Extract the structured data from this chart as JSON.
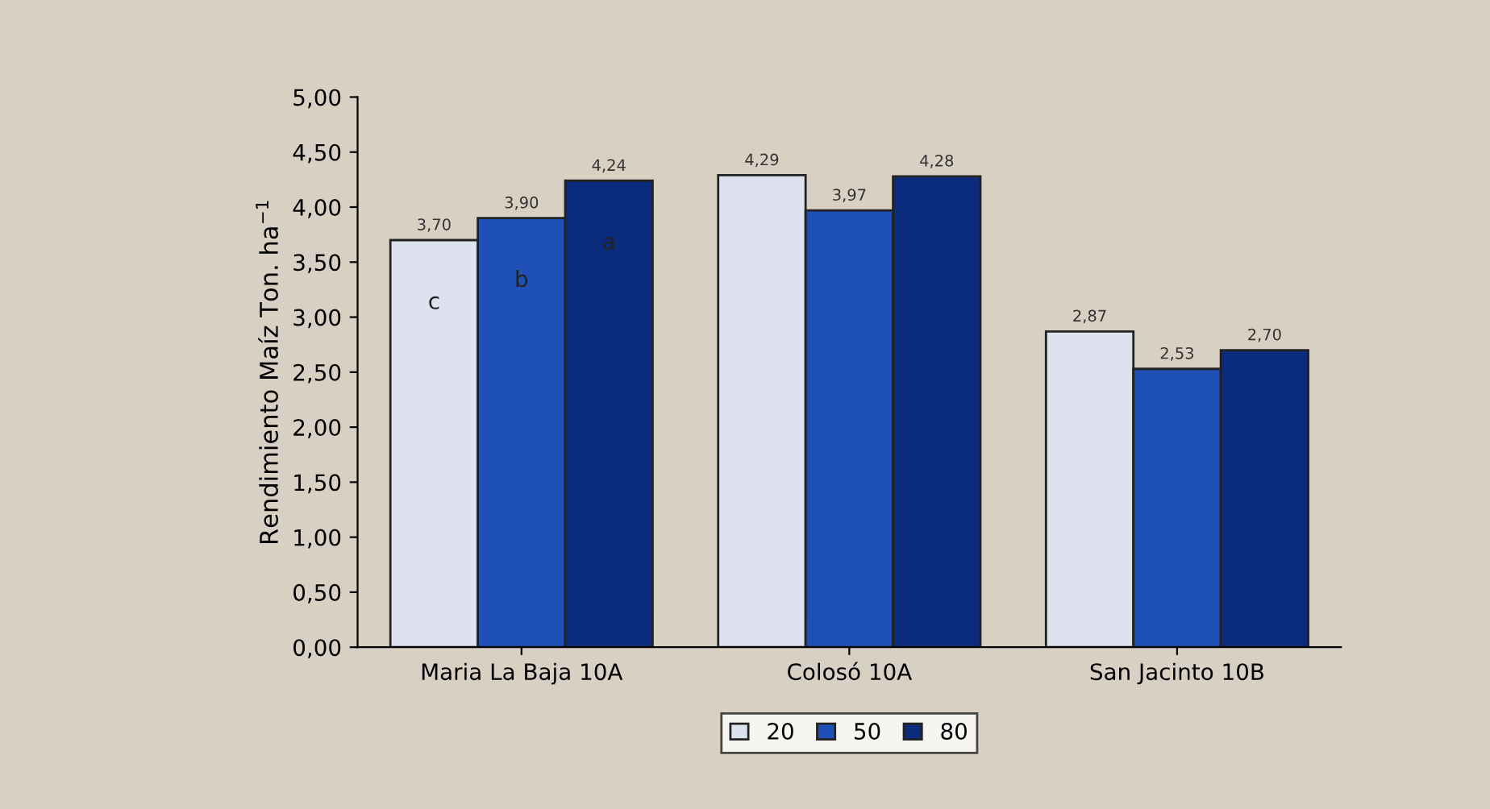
{
  "chart_data": {
    "type": "bar",
    "ylabel": "Rendimiento Maíz Ton. ha$^{−1}$",
    "categories": [
      "Maria La Baja 10A",
      "Colosó 10A",
      "San Jacinto 10B"
    ],
    "series": [
      {
        "name": "20",
        "color": "#dde2ee",
        "values": [
          3.7,
          4.29,
          2.87
        ],
        "value_labels": [
          "3,70",
          "4,29",
          "2,87"
        ]
      },
      {
        "name": "50",
        "color": "#1f50b8",
        "values": [
          3.9,
          3.97,
          2.53
        ],
        "value_labels": [
          "3,90",
          "3,97",
          "2,53"
        ]
      },
      {
        "name": "80",
        "color": "#0b2b7c",
        "values": [
          4.24,
          4.28,
          2.7
        ],
        "value_labels": [
          "4,24",
          "4,28",
          "2,70"
        ]
      }
    ],
    "ylim": [
      0,
      5
    ],
    "yticks": [
      {
        "value": 0,
        "label": "0,00"
      },
      {
        "value": 0.5,
        "label": "0,50"
      },
      {
        "value": 1,
        "label": "1,00"
      },
      {
        "value": 1.5,
        "label": "1,50"
      },
      {
        "value": 2,
        "label": "2,00"
      },
      {
        "value": 2.5,
        "label": "2,50"
      },
      {
        "value": 3,
        "label": "3,00"
      },
      {
        "value": 3.5,
        "label": "3,50"
      },
      {
        "value": 4,
        "label": "4,00"
      },
      {
        "value": 4.5,
        "label": "4,50"
      },
      {
        "value": 5,
        "label": "5,00"
      }
    ],
    "annotations": [
      "c",
      "b",
      "a"
    ],
    "grid": false,
    "legend": "bottom"
  }
}
